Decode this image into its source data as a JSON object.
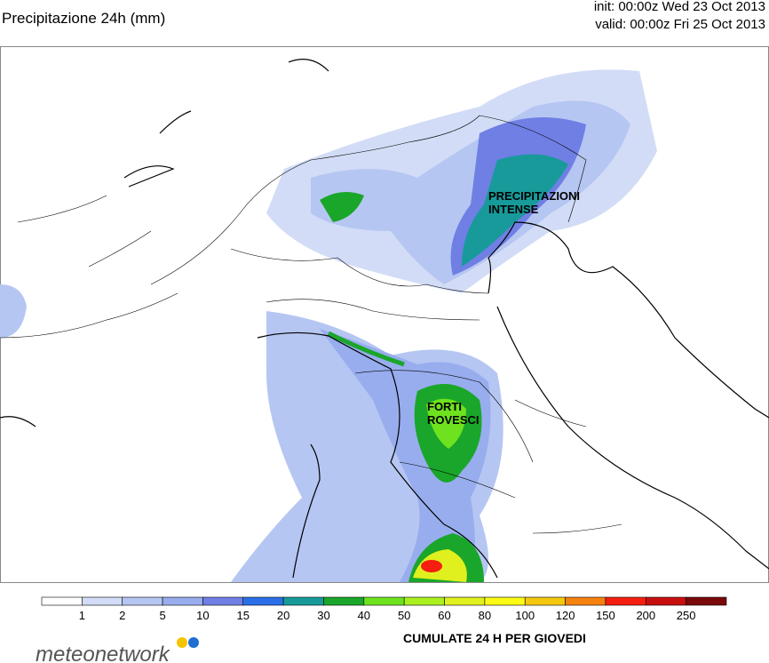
{
  "header": {
    "title": "Precipitazione 24h (mm)",
    "init": "init: 00:00z Wed 23 Oct 2013",
    "valid": "valid: 00:00z Fri 25 Oct 2013"
  },
  "annotations": [
    "PRECIPITAZIONI\nINTENSE",
    "FORTI\nROVESCI"
  ],
  "colorbar": {
    "levels": [
      1,
      2,
      5,
      10,
      15,
      20,
      30,
      40,
      50,
      60,
      80,
      100,
      120,
      150,
      200,
      250
    ],
    "colors": [
      "#ffffff",
      "#d2dcf6",
      "#b6c6f2",
      "#98adee",
      "#6f7fe4",
      "#2a6fe8",
      "#189a9a",
      "#1aa62a",
      "#6ee21e",
      "#aaf01e",
      "#e0f01e",
      "#fafa14",
      "#f5c80f",
      "#f5820f",
      "#f51e0f",
      "#c80f0f",
      "#7a0a0a"
    ],
    "caption": "CUMULATE 24 H PER GIOVEDI"
  },
  "logo": "meteonetwork"
}
